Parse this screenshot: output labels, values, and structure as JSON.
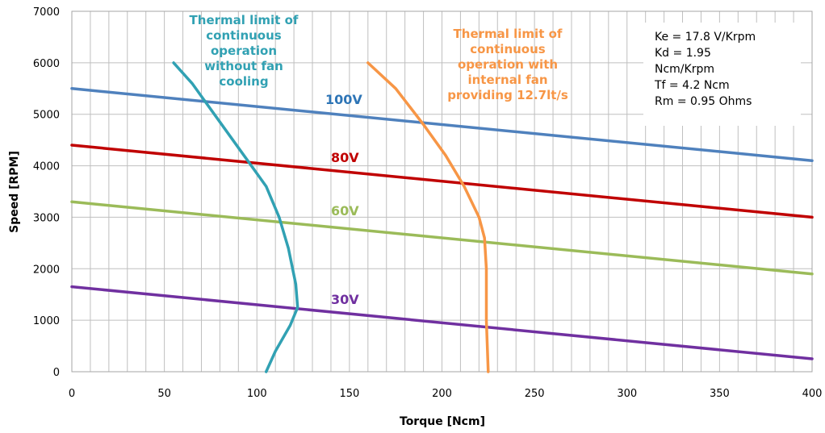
{
  "chart_data": {
    "type": "line",
    "title": "",
    "xlabel": "Torque [Ncm]",
    "ylabel": "Speed [RPM]",
    "xlim": [
      0,
      400
    ],
    "ylim": [
      0,
      7000
    ],
    "x_ticks": [
      "0",
      "50",
      "100",
      "150",
      "200",
      "250",
      "300",
      "350",
      "400"
    ],
    "y_ticks": [
      "0",
      "1000",
      "2000",
      "3000",
      "4000",
      "5000",
      "6000",
      "7000"
    ],
    "grid": "vertical every 10 Ncm, horizontal every 1000 RPM",
    "series": [
      {
        "name": "100V",
        "color": "#4f81bd",
        "x": [
          0,
          400
        ],
        "y": [
          5500,
          4100
        ]
      },
      {
        "name": "80V",
        "color": "#c00000",
        "x": [
          0,
          400
        ],
        "y": [
          4400,
          3000
        ]
      },
      {
        "name": "60V",
        "color": "#9bbb59",
        "x": [
          0,
          400
        ],
        "y": [
          3300,
          1900
        ]
      },
      {
        "name": "30V",
        "color": "#7030a0",
        "x": [
          0,
          400
        ],
        "y": [
          1650,
          250
        ]
      },
      {
        "name": "Thermal limit of continuous operation without fan cooling",
        "color": "#31a1b3",
        "x": [
          55,
          65,
          75,
          85,
          95,
          105,
          112,
          117,
          121,
          122,
          118,
          110,
          105
        ],
        "y": [
          6000,
          5600,
          5100,
          4600,
          4100,
          3600,
          3000,
          2400,
          1700,
          1250,
          900,
          400,
          0
        ]
      },
      {
        "name": "Thermal limit of continuous operation with internal fan providing 12.7lt/s",
        "color": "#f79646",
        "x": [
          160,
          175,
          190,
          202,
          212,
          220,
          223,
          224,
          224,
          225
        ],
        "y": [
          6000,
          5500,
          4800,
          4200,
          3600,
          3000,
          2600,
          2000,
          1000,
          0
        ]
      }
    ],
    "labels": {
      "v100": "100V",
      "v80": "80V",
      "v60": "60V",
      "v30": "30V",
      "thermal_nofan": [
        "Thermal limit of",
        "continuous",
        "operation",
        "without fan",
        "cooling"
      ],
      "thermal_fan": [
        "Thermal limit of",
        "continuous",
        "operation with",
        "internal fan",
        "providing 12.7lt/s"
      ]
    },
    "parameters": [
      "Ke = 17.8 V/Krpm",
      "Kd = 1.95",
      "Ncm/Krpm",
      "Tf = 4.2 Ncm",
      "Rm = 0.95 Ohms"
    ]
  }
}
